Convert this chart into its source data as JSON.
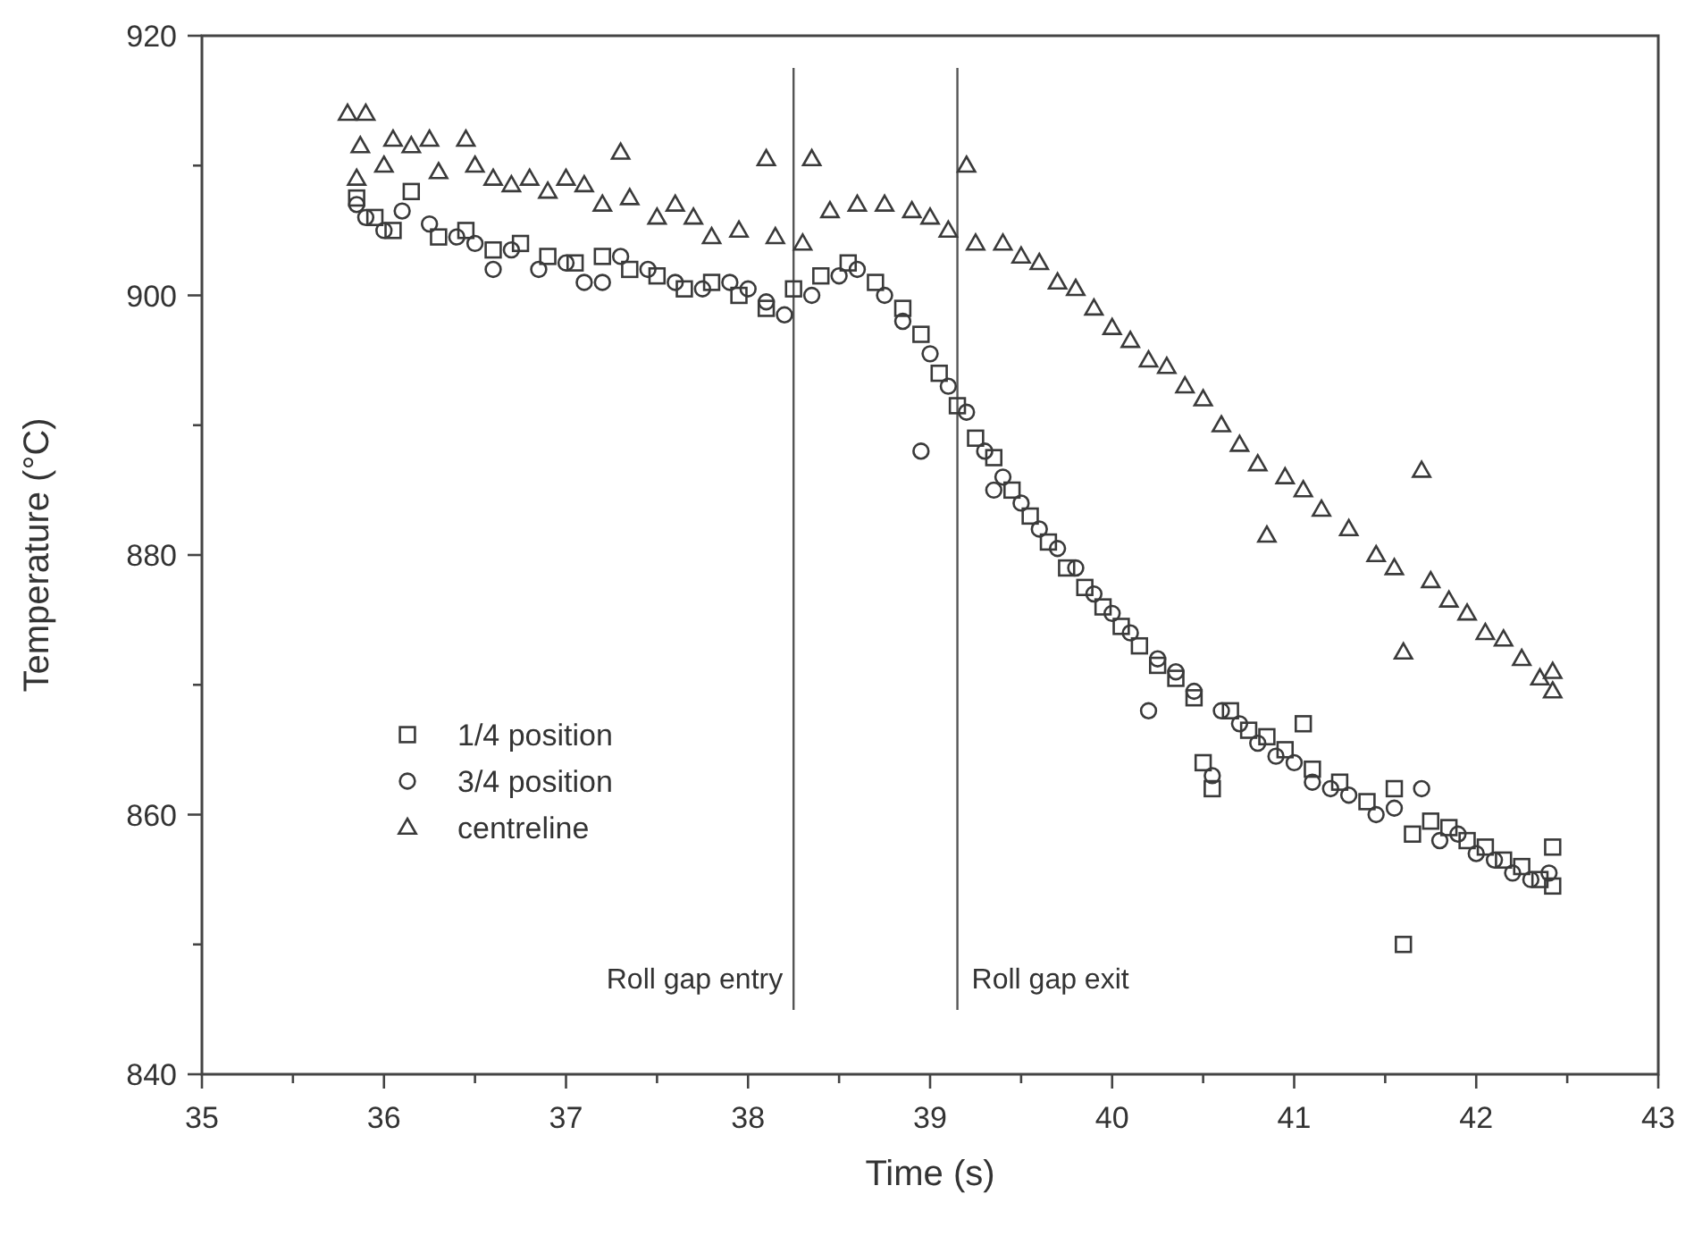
{
  "chart_data": {
    "type": "scatter",
    "xlabel": "Time (s)",
    "ylabel": "Temperature (°C)",
    "xlim": [
      35,
      43
    ],
    "ylim": [
      840,
      920
    ],
    "xticks": [
      35,
      {
        "value": 35.5,
        "label": null
      },
      36,
      {
        "value": 36.5,
        "label": null
      },
      37,
      {
        "value": 37.5,
        "label": null
      },
      38,
      {
        "value": 38.5,
        "label": null
      },
      39,
      {
        "value": 39.5,
        "label": null
      },
      40,
      {
        "value": 40.5,
        "label": null
      },
      41,
      {
        "value": 41.5,
        "label": null
      },
      42,
      {
        "value": 42.5,
        "label": null
      },
      43
    ],
    "yticks": [
      840,
      {
        "value": 850,
        "label": null
      },
      860,
      {
        "value": 870,
        "label": null
      },
      880,
      {
        "value": 890,
        "label": null
      },
      900,
      {
        "value": 910,
        "label": null
      },
      920
    ],
    "grid": false,
    "legend": "bottom left",
    "ref_lines": [
      {
        "axis": "x",
        "value": 38.25,
        "label": "Roll gap entry",
        "color": "#555555"
      },
      {
        "axis": "x",
        "value": 39.15,
        "label": "Roll gap exit",
        "color": "#555555"
      }
    ],
    "series": [
      {
        "name": "1/4 position",
        "color": "#3a3a3a",
        "marker": "square",
        "x": [
          35.85,
          35.95,
          36.05,
          36.15,
          36.3,
          36.45,
          36.6,
          36.75,
          36.9,
          37.05,
          37.2,
          37.35,
          37.5,
          37.65,
          37.8,
          37.95,
          38.1,
          38.25,
          38.4,
          38.55,
          38.7,
          38.85,
          38.95,
          39.05,
          39.15,
          39.25,
          39.35,
          39.45,
          39.55,
          39.65,
          39.75,
          39.85,
          39.95,
          40.05,
          40.15,
          40.25,
          40.35,
          40.45,
          40.5,
          40.55,
          40.65,
          40.75,
          40.85,
          40.95,
          41.05,
          41.1,
          41.25,
          41.4,
          41.55,
          41.6,
          41.65,
          41.75,
          41.85,
          41.95,
          42.05,
          42.15,
          42.25,
          42.35,
          42.42,
          42.42
        ],
        "values": [
          907.5,
          906,
          905,
          908,
          904.5,
          905,
          903.5,
          904,
          903,
          902.5,
          903,
          902,
          901.5,
          900.5,
          901,
          900,
          899,
          900.5,
          901.5,
          902.5,
          901,
          899,
          897,
          894,
          891.5,
          889,
          887.5,
          885,
          883,
          881,
          879,
          877.5,
          876,
          874.5,
          873,
          871.5,
          870.5,
          869,
          864,
          862,
          868,
          866.5,
          866,
          865,
          867,
          863.5,
          862.5,
          861,
          862,
          850,
          858.5,
          859.5,
          859,
          858,
          857.5,
          856.5,
          856,
          855,
          857.5,
          854.5
        ]
      },
      {
        "name": "3/4 position",
        "color": "#3a3a3a",
        "marker": "circle",
        "x": [
          35.85,
          35.9,
          36.0,
          36.1,
          36.25,
          36.4,
          36.5,
          36.6,
          36.7,
          36.85,
          37.0,
          37.1,
          37.2,
          37.3,
          37.45,
          37.6,
          37.75,
          37.9,
          38.0,
          38.1,
          38.2,
          38.35,
          38.5,
          38.6,
          38.75,
          38.85,
          38.95,
          39.0,
          39.1,
          39.2,
          39.35,
          39.3,
          39.4,
          39.5,
          39.6,
          39.7,
          39.8,
          39.9,
          40.0,
          40.1,
          40.2,
          40.25,
          40.35,
          40.45,
          40.55,
          40.6,
          40.7,
          40.8,
          40.9,
          41.0,
          41.1,
          41.2,
          41.3,
          41.45,
          41.55,
          41.7,
          41.8,
          41.9,
          42.0,
          42.1,
          42.2,
          42.3,
          42.4
        ],
        "values": [
          907,
          906,
          905,
          906.5,
          905.5,
          904.5,
          904,
          902,
          903.5,
          902,
          902.5,
          901,
          901,
          903,
          902,
          901,
          900.5,
          901,
          900.5,
          899.5,
          898.5,
          900,
          901.5,
          902,
          900,
          898,
          888,
          895.5,
          893,
          891,
          885,
          888,
          886,
          884,
          882,
          880.5,
          879,
          877,
          875.5,
          874,
          868,
          872,
          871,
          869.5,
          863,
          868,
          867,
          865.5,
          864.5,
          864,
          862.5,
          862,
          861.5,
          860,
          860.5,
          862,
          858,
          858.5,
          857,
          856.5,
          855.5,
          855,
          855.5
        ]
      },
      {
        "name": "centreline",
        "color": "#3a3a3a",
        "marker": "triangle",
        "x": [
          35.8,
          35.9,
          35.87,
          35.85,
          36.0,
          36.05,
          36.15,
          36.25,
          36.3,
          36.45,
          36.5,
          36.6,
          36.7,
          36.8,
          36.9,
          37.0,
          37.1,
          37.2,
          37.3,
          37.35,
          37.5,
          37.6,
          37.7,
          37.8,
          37.95,
          38.1,
          38.15,
          38.3,
          38.35,
          38.45,
          38.6,
          38.75,
          38.9,
          39.0,
          39.1,
          39.2,
          39.25,
          39.4,
          39.5,
          39.6,
          39.7,
          39.8,
          39.9,
          40.0,
          40.1,
          40.2,
          40.3,
          40.4,
          40.5,
          40.6,
          40.7,
          40.8,
          40.85,
          40.95,
          41.05,
          41.15,
          41.3,
          41.45,
          41.55,
          41.6,
          41.7,
          41.75,
          41.85,
          41.95,
          42.05,
          42.15,
          42.25,
          42.35,
          42.42,
          42.42
        ],
        "values": [
          914,
          914,
          911.5,
          909,
          910,
          912,
          911.5,
          912,
          909.5,
          912,
          910,
          909,
          908.5,
          909,
          908,
          909,
          908.5,
          907,
          911,
          907.5,
          906,
          907,
          906,
          904.5,
          905,
          910.5,
          904.5,
          904,
          910.5,
          906.5,
          907,
          907,
          906.5,
          906,
          905,
          910,
          904,
          904,
          903,
          902.5,
          901,
          900.5,
          899,
          897.5,
          896.5,
          895,
          894.5,
          893,
          892,
          890,
          888.5,
          887,
          881.5,
          886,
          885,
          883.5,
          882,
          880,
          879,
          872.5,
          886.5,
          878,
          876.5,
          875.5,
          874,
          873.5,
          872,
          870.5,
          869.5,
          871
        ]
      }
    ]
  }
}
